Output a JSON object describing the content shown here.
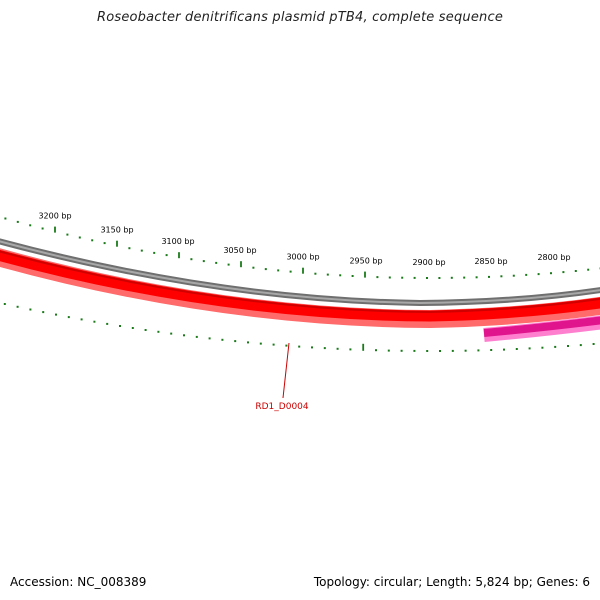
{
  "header": {
    "title": "Roseobacter denitrificans plasmid pTB4, complete sequence"
  },
  "map": {
    "tick_labels": [
      {
        "text": "3200 bp",
        "bp": 3200
      },
      {
        "text": "3150 bp",
        "bp": 3150
      },
      {
        "text": "3100 bp",
        "bp": 3100
      },
      {
        "text": "3050 bp",
        "bp": 3050
      },
      {
        "text": "3000 bp",
        "bp": 3000
      },
      {
        "text": "2950 bp",
        "bp": 2950
      },
      {
        "text": "2900 bp",
        "bp": 2900
      },
      {
        "text": "2850 bp",
        "bp": 2850
      },
      {
        "text": "2800 bp",
        "bp": 2800
      }
    ],
    "genes": [
      {
        "name": "RD1_D0004",
        "color": "#ff0000",
        "label_color": "#cc0000"
      },
      {
        "name": "",
        "color": "#e0148c"
      }
    ],
    "colors": {
      "backbone": "#808080",
      "tick": "#1a7a1a",
      "gene_red": "#ff0000",
      "gene_red_edge": "#ff6a6a",
      "gene_pink": "#e0148c",
      "gene_pink_edge": "#ff7fcf"
    }
  },
  "footer": {
    "accession": "Accession: NC_008389",
    "summary": "Topology: circular; Length: 5,824 bp; Genes: 6"
  }
}
